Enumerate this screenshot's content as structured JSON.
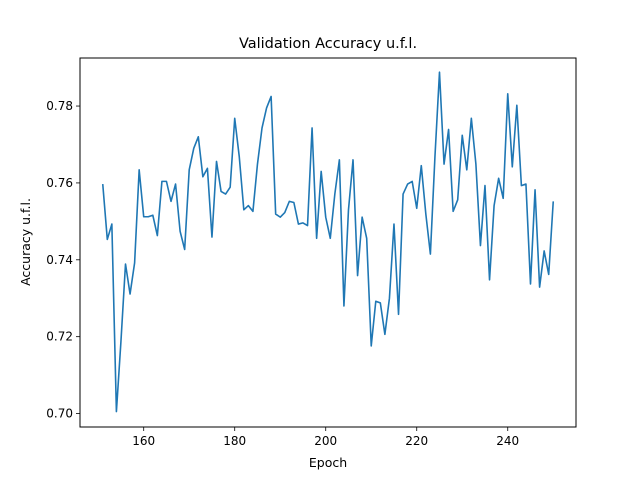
{
  "chart_data": {
    "type": "line",
    "title": "Validation Accuracy u.f.l.",
    "xlabel": "Epoch",
    "ylabel": "Accuracy u.f.l.",
    "xlim": [
      146,
      255
    ],
    "ylim": [
      0.6965,
      0.7925
    ],
    "xticks": [
      160,
      180,
      200,
      220,
      240
    ],
    "yticks": [
      0.7,
      0.72,
      0.74,
      0.76,
      0.78
    ],
    "xtick_labels": [
      "160",
      "180",
      "200",
      "220",
      "240"
    ],
    "ytick_labels": [
      "0.70",
      "0.72",
      "0.74",
      "0.76",
      "0.78"
    ],
    "grid": false,
    "series": [
      {
        "color": "#1f77b4",
        "x": [
          151,
          152,
          153,
          154,
          155,
          156,
          157,
          158,
          159,
          160,
          161,
          162,
          163,
          164,
          165,
          166,
          167,
          168,
          169,
          170,
          171,
          172,
          173,
          174,
          175,
          176,
          177,
          178,
          179,
          180,
          181,
          182,
          183,
          184,
          185,
          186,
          187,
          188,
          189,
          190,
          191,
          192,
          193,
          194,
          195,
          196,
          197,
          198,
          199,
          200,
          201,
          202,
          203,
          204,
          205,
          206,
          207,
          208,
          209,
          210,
          211,
          212,
          213,
          214,
          215,
          216,
          217,
          218,
          219,
          220,
          221,
          222,
          223,
          224,
          225,
          226,
          227,
          228,
          229,
          230,
          231,
          232,
          233,
          234,
          235,
          236,
          237,
          238,
          239,
          240,
          241,
          242,
          243,
          244,
          245,
          246,
          247,
          248,
          249,
          250
        ],
        "y": [
          0.7597,
          0.7453,
          0.7493,
          0.7005,
          0.7188,
          0.7389,
          0.7311,
          0.7392,
          0.7634,
          0.7512,
          0.7512,
          0.7516,
          0.7463,
          0.7604,
          0.7604,
          0.7552,
          0.7597,
          0.7474,
          0.7427,
          0.7634,
          0.769,
          0.772,
          0.7616,
          0.7638,
          0.7459,
          0.7656,
          0.7578,
          0.7571,
          0.7589,
          0.7768,
          0.7668,
          0.753,
          0.7541,
          0.7526,
          0.7649,
          0.7743,
          0.7795,
          0.7825,
          0.7519,
          0.7511,
          0.7523,
          0.7552,
          0.7549,
          0.7493,
          0.7496,
          0.7489,
          0.7743,
          0.7456,
          0.763,
          0.7511,
          0.7456,
          0.7571,
          0.766,
          0.728,
          0.753,
          0.766,
          0.7359,
          0.7511,
          0.7456,
          0.7176,
          0.7292,
          0.7288,
          0.7206,
          0.73,
          0.7493,
          0.7258,
          0.7571,
          0.7597,
          0.7604,
          0.7534,
          0.7645,
          0.7519,
          0.7415,
          0.7668,
          0.7888,
          0.7649,
          0.7739,
          0.7526,
          0.7556,
          0.7724,
          0.7634,
          0.7768,
          0.7649,
          0.7437,
          0.7593,
          0.7348,
          0.7541,
          0.7612,
          0.756,
          0.7832,
          0.7642,
          0.7802,
          0.7593,
          0.7597,
          0.7337,
          0.7582,
          0.7329,
          0.7423,
          0.7362,
          0.7552
        ]
      }
    ]
  }
}
